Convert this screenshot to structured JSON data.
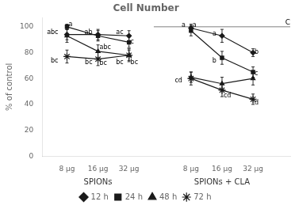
{
  "chart_data": {
    "type": "line",
    "title": "Cell Number",
    "ylabel": "% of control",
    "categories": [
      "8 μg",
      "16 μg",
      "32 μg",
      null,
      "8 μg",
      "16 μg",
      "32 μg"
    ],
    "group_labels": [
      {
        "text": "SPIONs",
        "x": 1
      },
      {
        "text": "SPIONs + CLA",
        "x": 5
      }
    ],
    "series": [
      {
        "name": "12 h",
        "marker": "diamond",
        "values": [
          94,
          94,
          93,
          null,
          99,
          93,
          80
        ],
        "errors": [
          4,
          4,
          4,
          null,
          3,
          5,
          3
        ]
      },
      {
        "name": "24 h",
        "marker": "square",
        "values": [
          100,
          93,
          88,
          null,
          97,
          76,
          65
        ],
        "errors": [
          2,
          4,
          4,
          null,
          4,
          5,
          4
        ]
      },
      {
        "name": "48 h",
        "marker": "triangle",
        "values": [
          93,
          81,
          78,
          null,
          61,
          56,
          60
        ],
        "errors": [
          5,
          5,
          4,
          null,
          4,
          5,
          5
        ]
      },
      {
        "name": "72 h",
        "marker": "star",
        "values": [
          77,
          75,
          78,
          null,
          60,
          51,
          44
        ],
        "errors": [
          5,
          5,
          5,
          null,
          5,
          5,
          4
        ]
      }
    ],
    "color": "#1a1a1a",
    "ylim": [
      0,
      107
    ],
    "yticks": [
      0,
      20,
      40,
      60,
      80,
      100
    ],
    "grid": false,
    "legend": "bottom",
    "reference_lines": [
      {
        "y": 100,
        "label": "C"
      }
    ],
    "annotations": [
      {
        "text": "a",
        "x": 0.05,
        "y": 101.5
      },
      {
        "text": "abc",
        "x": -0.28,
        "y": 95.5
      },
      {
        "text": "bc",
        "x": -0.28,
        "y": 73.5
      },
      {
        "text": "ab",
        "x": 0.82,
        "y": 95.5
      },
      {
        "text": "abc",
        "x": 1.05,
        "y": 84.0
      },
      {
        "text": "bc",
        "x": 0.82,
        "y": 72.5
      },
      {
        "text": "bc",
        "x": 1.05,
        "y": 71.5
      },
      {
        "text": "ac",
        "x": 1.82,
        "y": 95.5
      },
      {
        "text": "c",
        "x": 2.05,
        "y": 88.5
      },
      {
        "text": "bc",
        "x": 1.82,
        "y": 72.5
      },
      {
        "text": "bc",
        "x": 2.05,
        "y": 72.5
      },
      {
        "text": "a",
        "x": 3.82,
        "y": 101.0
      },
      {
        "text": "a",
        "x": 4.05,
        "y": 101.0
      },
      {
        "text": "cd",
        "x": 3.72,
        "y": 58.5
      },
      {
        "text": "a",
        "x": 4.82,
        "y": 94.5
      },
      {
        "text": "b",
        "x": 4.82,
        "y": 73.5
      },
      {
        "text": "cd",
        "x": 5.05,
        "y": 46.5
      },
      {
        "text": "b",
        "x": 6.05,
        "y": 80.5
      },
      {
        "text": "c",
        "x": 6.05,
        "y": 64.0
      },
      {
        "text": "d",
        "x": 6.05,
        "y": 41.0
      }
    ]
  }
}
